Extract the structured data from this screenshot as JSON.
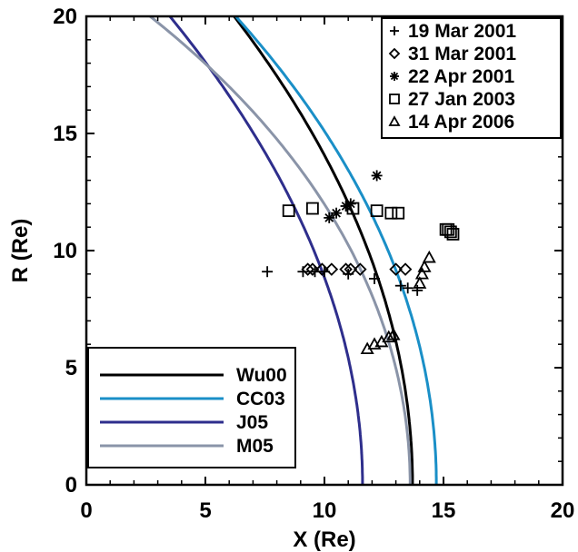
{
  "chart_data": {
    "type": "scatter",
    "title": "",
    "xlabel": "X (Re)",
    "ylabel": "R (Re)",
    "xlim": [
      0,
      20
    ],
    "ylim": [
      0,
      20
    ],
    "x_ticks": [
      "0",
      "5",
      "10",
      "15",
      "20"
    ],
    "y_ticks": [
      "0",
      "5",
      "10",
      "15",
      "20"
    ],
    "grid": false,
    "line_legend_position": "bottom-left",
    "marker_legend_position": "top-right",
    "curves": [
      {
        "name": "Wu00",
        "color": "#000000",
        "r0": 13.7,
        "r_at_x0": 27.0
      },
      {
        "name": "CC03",
        "color": "#1a8fc7",
        "r0": 14.7,
        "r_at_x0": 26.0
      },
      {
        "name": "J05",
        "color": "#2e2e8c",
        "r0": 11.6,
        "r_at_x0": 24.0
      },
      {
        "name": "M05",
        "color": "#8a94a8",
        "r0": 13.6,
        "r_at_x0": 22.0
      }
    ],
    "markers": [
      {
        "name": "19 Mar 2001",
        "symbol": "plus",
        "points": [
          [
            7.6,
            9.1
          ],
          [
            9.1,
            9.1
          ],
          [
            9.6,
            9.1
          ],
          [
            10.0,
            9.1
          ],
          [
            11.0,
            9.0
          ],
          [
            12.1,
            8.8
          ],
          [
            13.2,
            8.5
          ],
          [
            13.5,
            8.4
          ],
          [
            13.9,
            8.3
          ]
        ]
      },
      {
        "name": "31 Mar 2001",
        "symbol": "diamond",
        "points": [
          [
            9.3,
            9.2
          ],
          [
            9.5,
            9.2
          ],
          [
            9.9,
            9.2
          ],
          [
            10.3,
            9.2
          ],
          [
            10.9,
            9.2
          ],
          [
            11.1,
            9.2
          ],
          [
            11.5,
            9.2
          ],
          [
            13.0,
            9.2
          ],
          [
            13.4,
            9.2
          ]
        ]
      },
      {
        "name": "22 Apr 2001",
        "symbol": "asterisk",
        "points": [
          [
            10.2,
            11.4
          ],
          [
            10.5,
            11.6
          ],
          [
            10.9,
            11.9
          ],
          [
            11.1,
            12.0
          ],
          [
            12.2,
            13.2
          ]
        ]
      },
      {
        "name": "27 Jan 2003",
        "symbol": "square",
        "points": [
          [
            8.5,
            11.7
          ],
          [
            9.5,
            11.8
          ],
          [
            11.2,
            11.8
          ],
          [
            12.2,
            11.7
          ],
          [
            12.8,
            11.6
          ],
          [
            13.1,
            11.6
          ],
          [
            15.1,
            10.9
          ],
          [
            15.2,
            10.9
          ],
          [
            15.3,
            10.8
          ],
          [
            15.4,
            10.7
          ]
        ]
      },
      {
        "name": "14 Apr 2006",
        "symbol": "triangle",
        "points": [
          [
            11.8,
            5.8
          ],
          [
            12.1,
            6.0
          ],
          [
            12.4,
            6.1
          ],
          [
            12.7,
            6.3
          ],
          [
            12.9,
            6.4
          ],
          [
            14.0,
            8.6
          ],
          [
            14.1,
            9.0
          ],
          [
            14.2,
            9.3
          ],
          [
            14.4,
            9.7
          ]
        ]
      }
    ]
  }
}
